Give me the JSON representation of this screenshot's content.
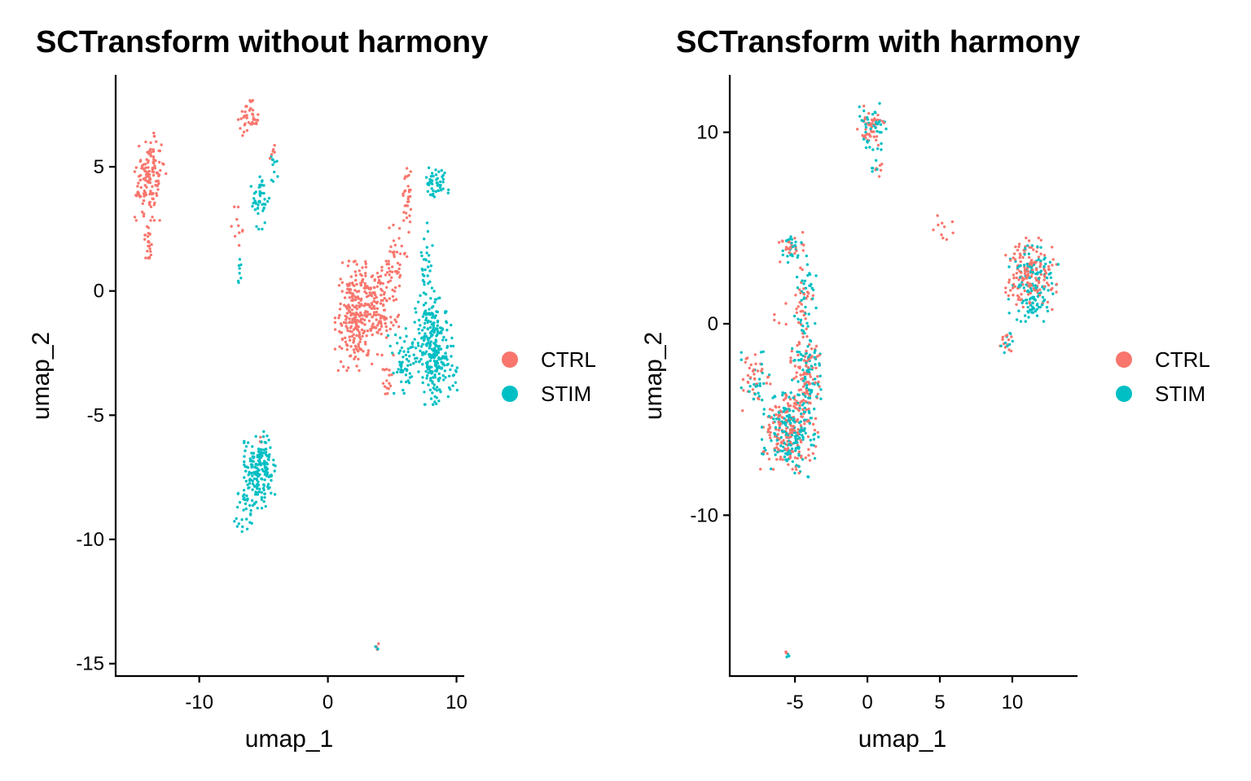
{
  "chart_data": [
    {
      "type": "scatter",
      "title": "SCTransform without harmony",
      "xlabel": "umap_1",
      "ylabel": "umap_2",
      "xlim": [
        -16.5,
        10.6
      ],
      "ylim": [
        -15.5,
        8.7
      ],
      "x_ticks": [
        -10,
        0,
        10
      ],
      "x_tick_labels": [
        "-10",
        "0",
        "10"
      ],
      "y_ticks": [
        5,
        0,
        -5,
        -10,
        -15
      ],
      "y_tick_labels": [
        "5",
        "0",
        "-5",
        "-10",
        "-15"
      ],
      "grid": false,
      "legend_position": "right",
      "series": [
        {
          "name": "CTRL",
          "color": "#F8766D",
          "clusters": [
            {
              "cx": -13.8,
              "cy": 4.6,
              "sx": 0.55,
              "sy": 0.8,
              "n": 130
            },
            {
              "cx": -14.6,
              "cy": 3.9,
              "sx": 0.25,
              "sy": 0.2,
              "n": 10
            },
            {
              "cx": -14.0,
              "cy": 2.1,
              "sx": 0.15,
              "sy": 0.35,
              "n": 25
            },
            {
              "cx": -6.2,
              "cy": 6.9,
              "sx": 0.35,
              "sy": 0.35,
              "n": 40
            },
            {
              "cx": -4.2,
              "cy": 5.6,
              "sx": 0.15,
              "sy": 0.12,
              "n": 6
            },
            {
              "cx": -7.0,
              "cy": 2.4,
              "sx": 0.35,
              "sy": 0.45,
              "n": 10
            },
            {
              "cx": 2.1,
              "cy": -1.0,
              "sx": 0.7,
              "sy": 1.0,
              "n": 220
            },
            {
              "cx": 3.8,
              "cy": -0.6,
              "sx": 0.8,
              "sy": 0.9,
              "n": 150
            },
            {
              "cx": 5.3,
              "cy": 1.2,
              "sx": 0.5,
              "sy": 0.7,
              "n": 40
            },
            {
              "cx": 6.1,
              "cy": 3.8,
              "sx": 0.2,
              "sy": 0.7,
              "n": 30
            },
            {
              "cx": 4.7,
              "cy": -3.4,
              "sx": 0.2,
              "sy": 0.5,
              "n": 15
            },
            {
              "cx": 3.8,
              "cy": -14.3,
              "sx": 0.1,
              "sy": 0.08,
              "n": 3
            },
            {
              "cx": -5.2,
              "cy": -6.0,
              "sx": 0.1,
              "sy": 0.1,
              "n": 3
            }
          ]
        },
        {
          "name": "STIM",
          "color": "#00BFC4",
          "clusters": [
            {
              "cx": -5.2,
              "cy": 3.7,
              "sx": 0.35,
              "sy": 0.55,
              "n": 45
            },
            {
              "cx": -4.2,
              "cy": 5.0,
              "sx": 0.15,
              "sy": 0.4,
              "n": 10
            },
            {
              "cx": -6.8,
              "cy": 0.9,
              "sx": 0.15,
              "sy": 0.3,
              "n": 8
            },
            {
              "cx": -5.3,
              "cy": -7.2,
              "sx": 0.55,
              "sy": 0.7,
              "n": 190
            },
            {
              "cx": -6.5,
              "cy": -8.9,
              "sx": 0.35,
              "sy": 0.4,
              "n": 30
            },
            {
              "cx": 8.4,
              "cy": -2.7,
              "sx": 0.75,
              "sy": 0.85,
              "n": 240
            },
            {
              "cx": 7.8,
              "cy": -0.9,
              "sx": 0.5,
              "sy": 0.6,
              "n": 60
            },
            {
              "cx": 7.6,
              "cy": 1.2,
              "sx": 0.3,
              "sy": 0.7,
              "n": 30
            },
            {
              "cx": 8.5,
              "cy": 4.3,
              "sx": 0.45,
              "sy": 0.3,
              "n": 50
            },
            {
              "cx": 6.0,
              "cy": -2.8,
              "sx": 0.6,
              "sy": 0.6,
              "n": 60
            },
            {
              "cx": 3.8,
              "cy": -14.4,
              "sx": 0.1,
              "sy": 0.08,
              "n": 3
            }
          ]
        }
      ]
    },
    {
      "type": "scatter",
      "title": "SCTransform with harmony",
      "xlabel": "umap_1",
      "ylabel": "umap_2",
      "xlim": [
        -9.5,
        14.5
      ],
      "ylim": [
        -18.4,
        13.0
      ],
      "x_ticks": [
        -5,
        0,
        5,
        10
      ],
      "x_tick_labels": [
        "-5",
        "0",
        "5",
        "10"
      ],
      "y_ticks": [
        10,
        0,
        -10
      ],
      "y_tick_labels": [
        "10",
        "0",
        "-10"
      ],
      "grid": false,
      "legend_position": "right",
      "series": [
        {
          "name": "CTRL",
          "color": "#F8766D",
          "clusters": [
            {
              "cx": 0.3,
              "cy": 10.3,
              "sx": 0.45,
              "sy": 0.55,
              "n": 45
            },
            {
              "cx": 0.8,
              "cy": 8.1,
              "sx": 0.3,
              "sy": 0.3,
              "n": 6
            },
            {
              "cx": 5.3,
              "cy": 4.9,
              "sx": 0.35,
              "sy": 0.35,
              "n": 10
            },
            {
              "cx": 11.3,
              "cy": 2.5,
              "sx": 0.8,
              "sy": 0.9,
              "n": 150
            },
            {
              "cx": 9.6,
              "cy": -0.8,
              "sx": 0.2,
              "sy": 0.3,
              "n": 12
            },
            {
              "cx": -5.3,
              "cy": 4.0,
              "sx": 0.5,
              "sy": 0.4,
              "n": 25
            },
            {
              "cx": -4.4,
              "cy": 1.6,
              "sx": 0.3,
              "sy": 0.6,
              "n": 20
            },
            {
              "cx": -4.3,
              "cy": -2.5,
              "sx": 0.45,
              "sy": 1.4,
              "n": 90
            },
            {
              "cx": -5.4,
              "cy": -5.6,
              "sx": 0.9,
              "sy": 1.0,
              "n": 190
            },
            {
              "cx": -7.8,
              "cy": -3.0,
              "sx": 0.5,
              "sy": 0.7,
              "n": 35
            },
            {
              "cx": -6.0,
              "cy": 0.4,
              "sx": 0.2,
              "sy": 0.3,
              "n": 5
            },
            {
              "cx": -5.6,
              "cy": -17.2,
              "sx": 0.07,
              "sy": 0.07,
              "n": 3
            }
          ]
        },
        {
          "name": "STIM",
          "color": "#00BFC4",
          "clusters": [
            {
              "cx": 0.3,
              "cy": 10.3,
              "sx": 0.45,
              "sy": 0.55,
              "n": 40
            },
            {
              "cx": 0.6,
              "cy": 8.3,
              "sx": 0.25,
              "sy": 0.3,
              "n": 5
            },
            {
              "cx": 11.5,
              "cy": 2.1,
              "sx": 0.8,
              "sy": 0.9,
              "n": 120
            },
            {
              "cx": 11.3,
              "cy": 1.0,
              "sx": 0.35,
              "sy": 0.3,
              "n": 20
            },
            {
              "cx": 9.6,
              "cy": -1.0,
              "sx": 0.2,
              "sy": 0.3,
              "n": 10
            },
            {
              "cx": -5.3,
              "cy": 4.0,
              "sx": 0.5,
              "sy": 0.4,
              "n": 25
            },
            {
              "cx": -4.2,
              "cy": 1.8,
              "sx": 0.3,
              "sy": 0.6,
              "n": 25
            },
            {
              "cx": -4.2,
              "cy": -2.5,
              "sx": 0.45,
              "sy": 1.4,
              "n": 90
            },
            {
              "cx": -5.3,
              "cy": -5.8,
              "sx": 0.9,
              "sy": 1.0,
              "n": 170
            },
            {
              "cx": -7.6,
              "cy": -3.0,
              "sx": 0.5,
              "sy": 0.7,
              "n": 25
            },
            {
              "cx": -5.5,
              "cy": -17.3,
              "sx": 0.07,
              "sy": 0.07,
              "n": 3
            }
          ]
        }
      ]
    }
  ]
}
